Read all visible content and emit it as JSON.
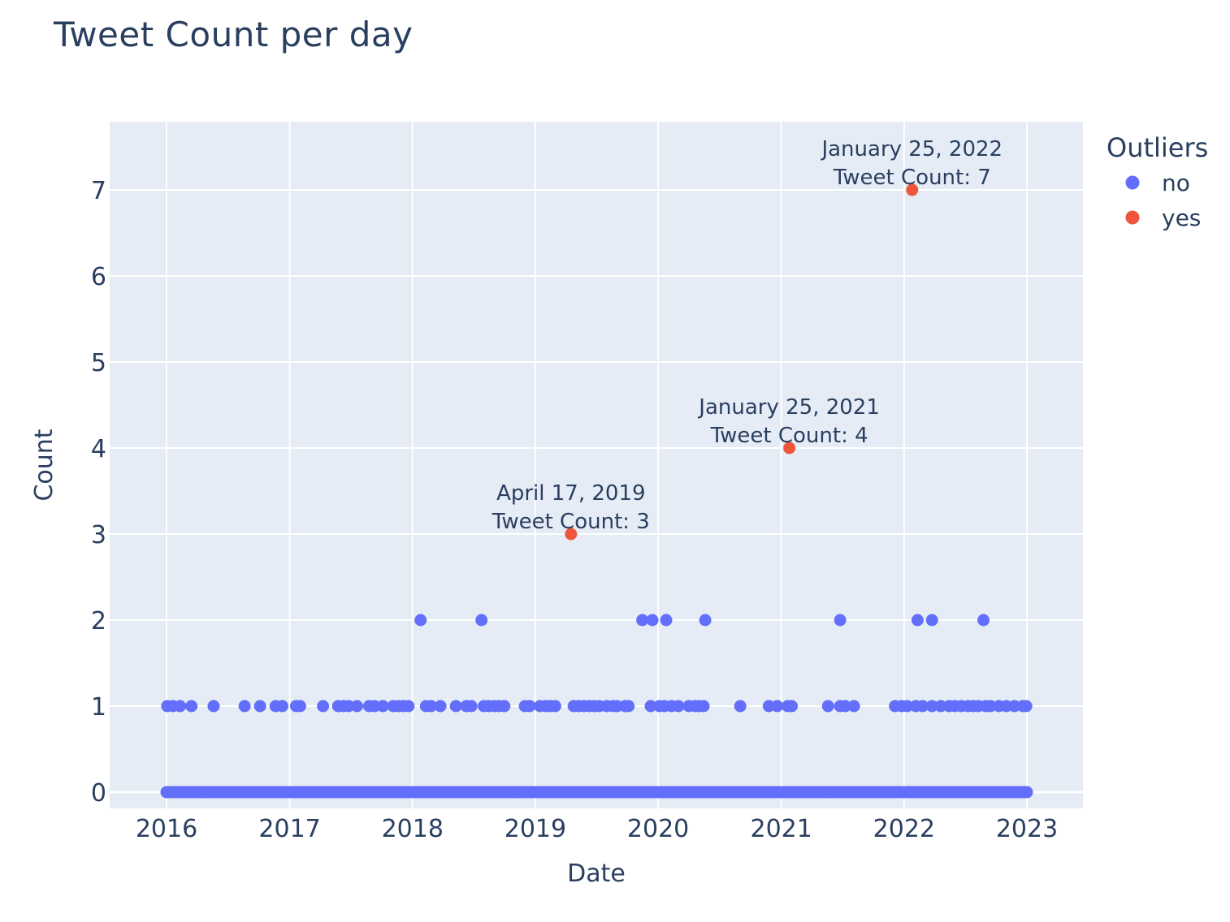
{
  "chart_data": {
    "type": "scatter",
    "title": "Tweet Count per day",
    "xlabel": "Date",
    "ylabel": "Count",
    "xlim": [
      "2015-07-15",
      "2023-06-15"
    ],
    "ylim": [
      -0.2,
      7.8
    ],
    "x_ticks": [
      "2016",
      "2017",
      "2018",
      "2019",
      "2020",
      "2021",
      "2022",
      "2023"
    ],
    "y_ticks": [
      "0",
      "1",
      "2",
      "3",
      "4",
      "5",
      "6",
      "7"
    ],
    "grid": true,
    "legend": {
      "title": "Outliers",
      "placement": "right"
    },
    "series": [
      {
        "name": "no",
        "color": "#636efa",
        "baseline": {
          "y": 0,
          "x_from": "2016-01-01",
          "x_to": "2023-01-01",
          "note_every_day": true
        },
        "points": [
          [
            "2016-01-03",
            1
          ],
          [
            "2016-01-20",
            1
          ],
          [
            "2016-02-10",
            1
          ],
          [
            "2016-03-15",
            1
          ],
          [
            "2016-05-20",
            1
          ],
          [
            "2016-08-20",
            1
          ],
          [
            "2016-10-05",
            1
          ],
          [
            "2016-11-20",
            1
          ],
          [
            "2016-12-10",
            1
          ],
          [
            "2017-01-20",
            1
          ],
          [
            "2017-02-01",
            1
          ],
          [
            "2017-04-10",
            1
          ],
          [
            "2017-05-25",
            1
          ],
          [
            "2017-06-10",
            1
          ],
          [
            "2017-06-25",
            1
          ],
          [
            "2017-07-20",
            1
          ],
          [
            "2017-08-25",
            1
          ],
          [
            "2017-09-10",
            1
          ],
          [
            "2017-10-05",
            1
          ],
          [
            "2017-11-05",
            1
          ],
          [
            "2017-11-20",
            1
          ],
          [
            "2017-12-05",
            1
          ],
          [
            "2017-12-20",
            1
          ],
          [
            "2018-01-25",
            2
          ],
          [
            "2018-02-10",
            1
          ],
          [
            "2018-02-25",
            1
          ],
          [
            "2018-03-25",
            1
          ],
          [
            "2018-05-10",
            1
          ],
          [
            "2018-06-10",
            1
          ],
          [
            "2018-06-25",
            1
          ],
          [
            "2018-07-25",
            2
          ],
          [
            "2018-08-01",
            1
          ],
          [
            "2018-08-15",
            1
          ],
          [
            "2018-09-01",
            1
          ],
          [
            "2018-09-15",
            1
          ],
          [
            "2018-10-01",
            1
          ],
          [
            "2018-12-01",
            1
          ],
          [
            "2018-12-15",
            1
          ],
          [
            "2019-01-15",
            1
          ],
          [
            "2019-02-01",
            1
          ],
          [
            "2019-02-15",
            1
          ],
          [
            "2019-03-01",
            1
          ],
          [
            "2019-04-25",
            1
          ],
          [
            "2019-05-10",
            1
          ],
          [
            "2019-05-25",
            1
          ],
          [
            "2019-06-10",
            1
          ],
          [
            "2019-06-25",
            1
          ],
          [
            "2019-07-10",
            1
          ],
          [
            "2019-08-01",
            1
          ],
          [
            "2019-08-20",
            1
          ],
          [
            "2019-09-01",
            1
          ],
          [
            "2019-09-25",
            1
          ],
          [
            "2019-10-05",
            1
          ],
          [
            "2019-11-15",
            2
          ],
          [
            "2019-12-15",
            2
          ],
          [
            "2019-12-10",
            1
          ],
          [
            "2020-01-05",
            1
          ],
          [
            "2020-01-20",
            1
          ],
          [
            "2020-01-25",
            2
          ],
          [
            "2020-02-10",
            1
          ],
          [
            "2020-03-01",
            1
          ],
          [
            "2020-04-01",
            1
          ],
          [
            "2020-04-20",
            1
          ],
          [
            "2020-05-01",
            1
          ],
          [
            "2020-05-15",
            1
          ],
          [
            "2020-05-20",
            2
          ],
          [
            "2020-09-01",
            1
          ],
          [
            "2020-11-25",
            1
          ],
          [
            "2020-12-20",
            1
          ],
          [
            "2021-01-20",
            1
          ],
          [
            "2021-02-01",
            1
          ],
          [
            "2021-05-20",
            1
          ],
          [
            "2021-06-25",
            2
          ],
          [
            "2021-06-25",
            1
          ],
          [
            "2021-07-10",
            1
          ],
          [
            "2021-08-05",
            1
          ],
          [
            "2021-12-05",
            1
          ],
          [
            "2021-12-25",
            1
          ],
          [
            "2022-01-10",
            1
          ],
          [
            "2022-02-05",
            1
          ],
          [
            "2022-02-10",
            2
          ],
          [
            "2022-02-25",
            1
          ],
          [
            "2022-03-25",
            1
          ],
          [
            "2022-03-25",
            2
          ],
          [
            "2022-04-20",
            1
          ],
          [
            "2022-05-15",
            1
          ],
          [
            "2022-06-01",
            1
          ],
          [
            "2022-06-20",
            1
          ],
          [
            "2022-07-10",
            1
          ],
          [
            "2022-07-25",
            1
          ],
          [
            "2022-08-10",
            1
          ],
          [
            "2022-08-25",
            2
          ],
          [
            "2022-09-01",
            1
          ],
          [
            "2022-09-15",
            1
          ],
          [
            "2022-10-10",
            1
          ],
          [
            "2022-11-01",
            1
          ],
          [
            "2022-11-25",
            1
          ],
          [
            "2022-12-20",
            1
          ],
          [
            "2022-12-30",
            1
          ]
        ]
      },
      {
        "name": "yes",
        "color": "#ef553b",
        "points": [
          [
            "2019-04-17",
            3
          ],
          [
            "2021-01-25",
            4
          ],
          [
            "2022-01-25",
            7
          ]
        ]
      }
    ],
    "annotations": [
      {
        "x": "2019-04-17",
        "y": 3,
        "line1": "April 17, 2019",
        "line2": "Tweet Count: 3"
      },
      {
        "x": "2021-01-25",
        "y": 4,
        "line1": "January 25, 2021",
        "line2": "Tweet Count: 4"
      },
      {
        "x": "2022-01-25",
        "y": 7,
        "line1": "January 25, 2022",
        "line2": "Tweet Count: 7"
      }
    ]
  }
}
